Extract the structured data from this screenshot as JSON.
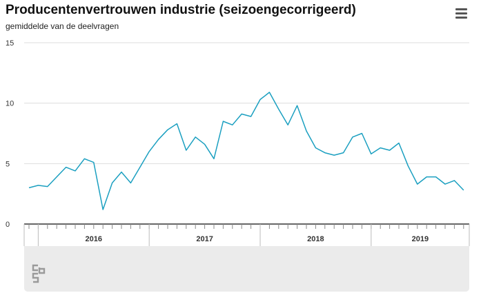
{
  "header": {
    "title": "Producentenvertrouwen industrie (seizoengecorrigeerd)",
    "subtitle": "gemiddelde van de deelvragen",
    "menu_icon": "hamburger-menu-icon"
  },
  "logo": {
    "icon": "cbs-logo-icon"
  },
  "colors": {
    "line": "#1a9fc0",
    "grid": "#dddddd",
    "axis": "#333333",
    "navigator": "#ebebeb"
  },
  "chart_data": {
    "type": "line",
    "title": "Producentenvertrouwen industrie (seizoengecorrigeerd)",
    "subtitle": "gemiddelde van de deelvragen",
    "xlabel": "",
    "ylabel": "",
    "ylim": [
      0,
      15
    ],
    "yticks": [
      "0",
      "5",
      "10",
      "15"
    ],
    "grid": true,
    "start": "2015-12",
    "years": [
      "2016",
      "2017",
      "2018",
      "2019"
    ],
    "series": [
      {
        "values": [
          3.0,
          3.2,
          3.1,
          3.9,
          4.7,
          4.4,
          5.4,
          5.1,
          1.2,
          3.4,
          4.3,
          3.4,
          4.7,
          6.0,
          7.0,
          7.8,
          8.3,
          6.1,
          7.2,
          6.6,
          5.4,
          8.5,
          8.2,
          9.1,
          8.9,
          10.3,
          10.9,
          9.5,
          8.2,
          9.8,
          7.7,
          6.3,
          5.9,
          5.7,
          5.9,
          7.2,
          7.5,
          5.8,
          6.3,
          6.1,
          6.7,
          4.8,
          3.3,
          3.9,
          3.9,
          3.3,
          3.6,
          2.8
        ]
      }
    ]
  }
}
